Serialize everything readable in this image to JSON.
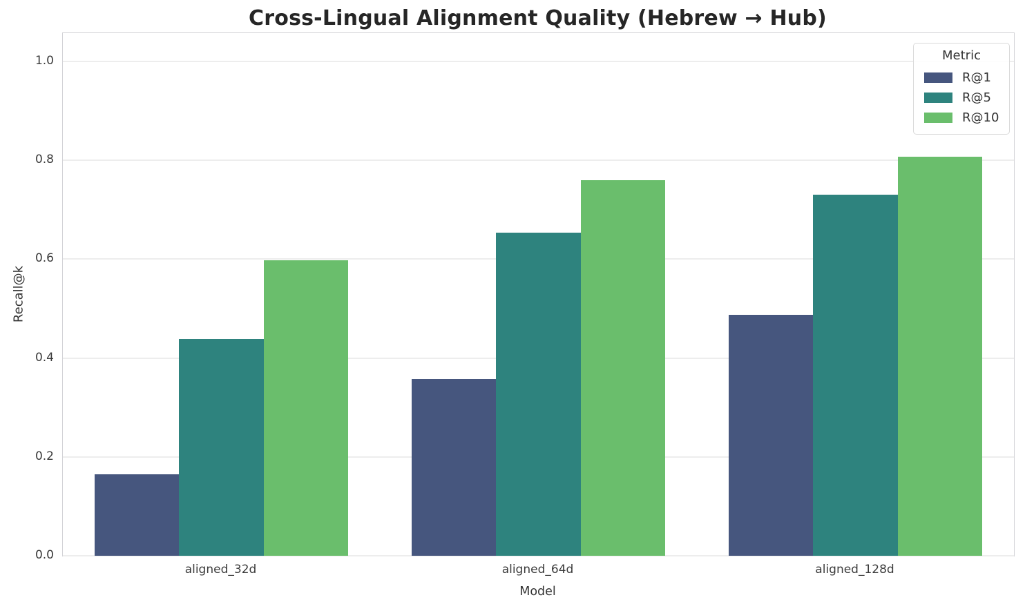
{
  "chart_data": {
    "type": "bar",
    "title": "Cross-Lingual Alignment Quality (Hebrew → Hub)",
    "xlabel": "Model",
    "ylabel": "Recall@k",
    "categories": [
      "aligned_32d",
      "aligned_64d",
      "aligned_128d"
    ],
    "series": [
      {
        "name": "R@1",
        "color": "#46567e",
        "values": [
          0.165,
          0.357,
          0.488
        ]
      },
      {
        "name": "R@5",
        "color": "#2e837e",
        "values": [
          0.438,
          0.654,
          0.73
        ]
      },
      {
        "name": "R@10",
        "color": "#6abe6c",
        "values": [
          0.597,
          0.76,
          0.807
        ]
      }
    ],
    "legend": {
      "title": "Metric",
      "position": "upper right"
    },
    "yticks": [
      0.0,
      0.2,
      0.4,
      0.6,
      0.8,
      1.0
    ],
    "ylim": [
      0,
      1.057
    ],
    "grid": "horizontal"
  },
  "colors": {
    "background": "#ffffff",
    "grid": "#ededed",
    "spine": "#d2d2d6",
    "tick_text": "#3a3a3a",
    "title_text": "#262626"
  }
}
